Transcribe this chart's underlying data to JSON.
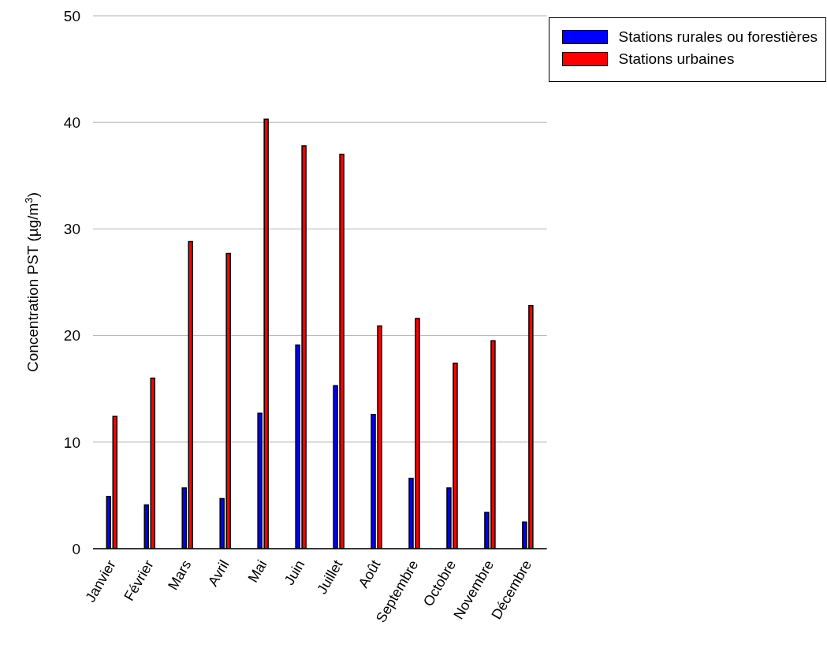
{
  "chart_data": {
    "type": "bar",
    "ylabel": "Concentration PST (µg/m$^{3}$)",
    "categories": [
      "Janvier",
      "Février",
      "Mars",
      "Avril",
      "Mai",
      "Juin",
      "Juillet",
      "Août",
      "Septembre",
      "Octobre",
      "Novembre",
      "Décembre"
    ],
    "series": [
      {
        "name": "Stations rurales ou forestières",
        "color": "#0000ff",
        "values": [
          4.9,
          4.1,
          5.7,
          4.7,
          12.7,
          19.1,
          15.3,
          12.6,
          6.6,
          5.7,
          3.4,
          2.5
        ]
      },
      {
        "name": "Stations urbaines",
        "color": "#ff0000",
        "values": [
          12.4,
          16.0,
          28.8,
          27.7,
          40.3,
          37.8,
          37.0,
          20.9,
          21.6,
          17.4,
          19.5,
          22.8
        ]
      }
    ],
    "ylim": [
      0,
      50
    ],
    "yticks": [
      0,
      10,
      20,
      30,
      40,
      50
    ],
    "grid": "y",
    "legend": "top right"
  }
}
